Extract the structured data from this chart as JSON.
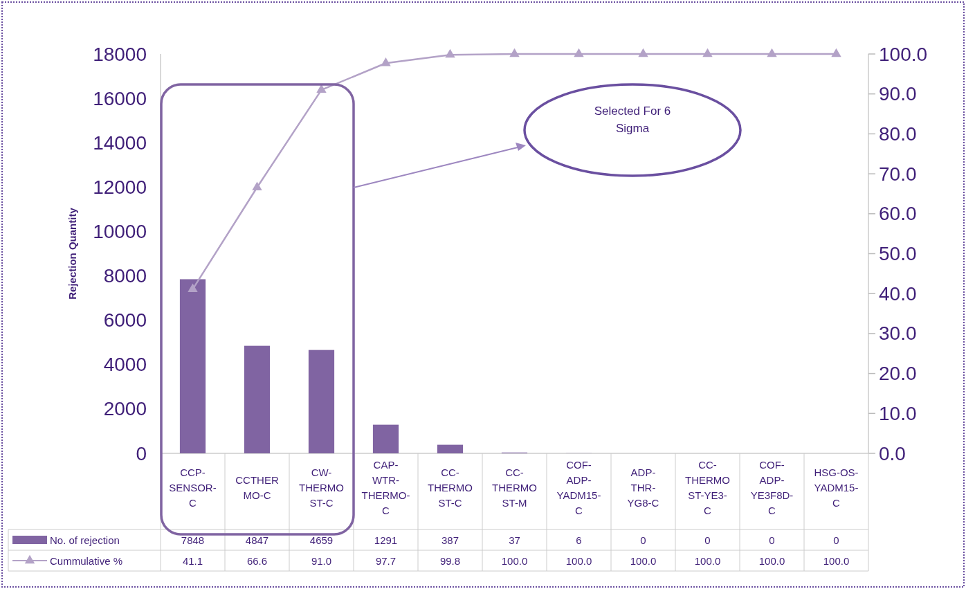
{
  "chart_data": {
    "type": "bar",
    "ylabel": "Rejection Quantity",
    "categories": [
      "CCP-SENSOR-C",
      "CCTHERMO-C",
      "CW-THERMOST-C",
      "CAP-WTR-THERMO-C",
      "CC-THERMOST-C",
      "CC-THERMOST-M",
      "COF-ADP-YADM15-C",
      "ADP-THR-YG8-C",
      "CC-THERMOST-YE3-C",
      "COF-ADP-YE3F8D-C",
      "HSG-OS-YADM15-C"
    ],
    "series": [
      {
        "name": "No. of rejection",
        "color": "#8064a2",
        "values": [
          7848,
          4847,
          4659,
          1291,
          387,
          37,
          6,
          0,
          0,
          0,
          0
        ],
        "value_labels": [
          "7848",
          "4847",
          "4659",
          "1291",
          "387",
          "37",
          "6",
          "0",
          "0",
          "0",
          "0"
        ]
      },
      {
        "name": "Cummulative %",
        "type": "line",
        "axis": "y2",
        "color": "#b3a2c7",
        "marker": "triangle",
        "values": [
          41.1,
          66.6,
          91.0,
          97.7,
          99.8,
          100.0,
          100.0,
          100.0,
          100.0,
          100.0,
          100.0
        ],
        "value_labels": [
          "41.1",
          "66.6",
          "91.0",
          "97.7",
          "99.8",
          "100.0",
          "100.0",
          "100.0",
          "100.0",
          "100.0",
          "100.0"
        ]
      }
    ],
    "ylim": [
      0,
      18000
    ],
    "yticks": [
      0,
      2000,
      4000,
      6000,
      8000,
      10000,
      12000,
      14000,
      16000,
      18000
    ],
    "y2lim": [
      0,
      100
    ],
    "y2ticks": [
      {
        "value": 0,
        "label": "0.0"
      },
      {
        "value": 10,
        "label": "10.0"
      },
      {
        "value": 20,
        "label": "20.0"
      },
      {
        "value": 30,
        "label": "30.0"
      },
      {
        "value": 40,
        "label": "40.0"
      },
      {
        "value": 50,
        "label": "50.0"
      },
      {
        "value": 60,
        "label": "60.0"
      },
      {
        "value": 70,
        "label": "70.0"
      },
      {
        "value": 80,
        "label": "80.0"
      },
      {
        "value": 90,
        "label": "90.0"
      },
      {
        "value": 100,
        "label": "100.0"
      }
    ],
    "annotations": [
      "Selected For 6 Sigma"
    ],
    "grid": false,
    "legend": "bottom"
  }
}
